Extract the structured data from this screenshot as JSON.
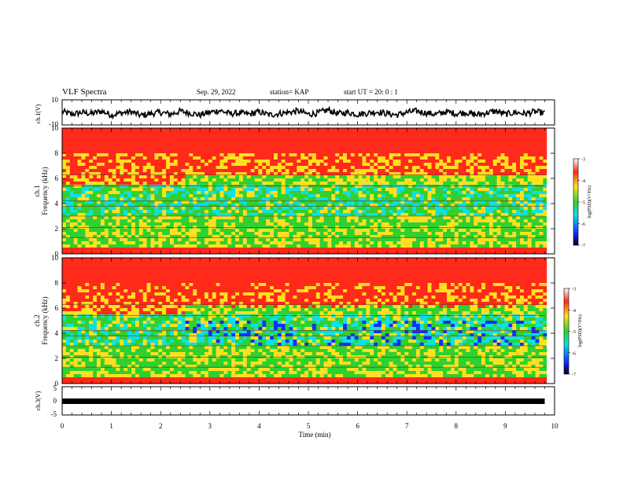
{
  "header": {
    "title": "VLF Spectra",
    "date": "Sep. 29, 2022",
    "station": "station= KAP",
    "start": "start  UT =   20: 0  : 1"
  },
  "chart_data": [
    {
      "type": "line",
      "panel": "ch1-waveform",
      "ylabel": "ch.1(V)",
      "ylim": [
        -10,
        10
      ],
      "yticks": [
        "10",
        "-10"
      ],
      "xlim": [
        0,
        10
      ],
      "x": [
        0,
        0.2,
        0.4,
        0.6,
        0.8,
        1.0,
        1.2,
        1.4,
        1.6,
        1.8,
        2.0,
        2.2,
        2.4,
        2.6,
        2.8,
        3.0,
        3.2,
        3.4,
        3.6,
        3.8,
        4.0,
        4.2,
        4.4,
        4.6,
        4.8,
        5.0,
        5.2,
        5.4,
        5.6,
        5.8,
        6.0,
        6.2,
        6.4,
        6.6,
        6.8,
        7.0,
        7.2,
        7.4,
        7.6,
        7.8,
        8.0,
        8.2,
        8.4,
        8.6,
        8.8,
        9.0,
        9.2,
        9.4,
        9.6,
        9.8
      ],
      "values": [
        -1,
        3,
        0,
        2,
        -2,
        4,
        1,
        -1,
        5,
        2,
        0,
        3,
        -2,
        1,
        4,
        0,
        -3,
        2,
        1,
        3,
        -1,
        4,
        2,
        0,
        -2,
        3,
        1,
        -4,
        2,
        0,
        3,
        1,
        -1,
        2,
        4,
        0,
        -2,
        1,
        3,
        -1,
        2,
        0,
        4,
        1,
        -2,
        3,
        0,
        2,
        -1,
        1
      ]
    },
    {
      "type": "heatmap",
      "panel": "ch1-spectrogram",
      "ylabel": "ch.1",
      "ylabel2": "Frequency  (kHz)",
      "ylim": [
        0,
        10
      ],
      "yticks": [
        "0",
        "2",
        "4",
        "6",
        "8",
        "10"
      ],
      "xlim": [
        0,
        10
      ],
      "colorbar": {
        "label": "log(PSD)(V²/Hz)",
        "ticks": [
          "-3",
          "-4",
          "-5",
          "-6",
          "-7"
        ],
        "range": [
          -7,
          -3
        ]
      }
    },
    {
      "type": "heatmap",
      "panel": "ch2-spectrogram",
      "ylabel": "ch.2",
      "ylabel2": "Frequency  (kHz)",
      "ylim": [
        0,
        10
      ],
      "yticks": [
        "0",
        "2",
        "4",
        "6",
        "8",
        "10"
      ],
      "xlim": [
        0,
        10
      ],
      "colorbar": {
        "label": "log(PSD)(V²/Hz)",
        "ticks": [
          "-3",
          "-4",
          "-5",
          "-6",
          "-7"
        ],
        "range": [
          -7,
          -3
        ]
      }
    },
    {
      "type": "line",
      "panel": "ch3-waveform",
      "ylabel": "ch.3(V)",
      "ylim": [
        -5,
        5
      ],
      "yticks": [
        "5",
        "0",
        "-5"
      ],
      "xlim": [
        0,
        10
      ],
      "x": [
        0,
        9.8
      ],
      "values": [
        -1.5,
        -1.5
      ]
    }
  ],
  "xaxis": {
    "label": "Time  (min)",
    "ticks": [
      "0",
      "1",
      "2",
      "3",
      "4",
      "5",
      "6",
      "7",
      "8",
      "9",
      "10"
    ]
  },
  "colors": {
    "red": "#ff2a1a",
    "yellow": "#ffe020",
    "green": "#30d030",
    "cyan": "#10e0e0",
    "blue": "#1030ff",
    "black": "#000000"
  }
}
